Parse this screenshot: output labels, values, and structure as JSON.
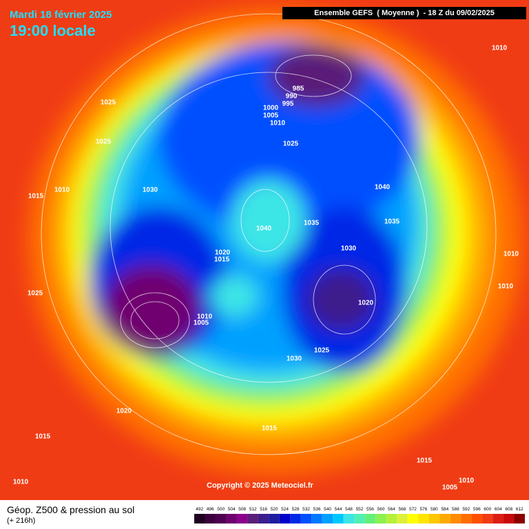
{
  "header": {
    "date": "Mardi 18 février 2025",
    "time": "19:00 locale",
    "run": "Ensemble GEFS  ( Moyenne )  - 18 Z du 09/02/2025"
  },
  "copyright": "Copyright © 2025 Meteociel.fr",
  "footer": {
    "title": "Géop. Z500 & pression au sol",
    "lead": "(+ 216h)"
  },
  "pressure_labels": [
    "1010",
    "1025",
    "1025",
    "1010",
    "1015",
    "1030",
    "985",
    "990",
    "995",
    "1000",
    "1005",
    "1010",
    "1025",
    "1040",
    "1040",
    "1035",
    "1035",
    "1030",
    "1020",
    "1015",
    "1010",
    "1010",
    "1020",
    "1025",
    "1010",
    "1005",
    "1025",
    "1030",
    "1020",
    "1015",
    "1015",
    "1015",
    "1010",
    "1010",
    "1005"
  ],
  "scale": {
    "labels": [
      "492",
      "496",
      "500",
      "504",
      "508",
      "512",
      "516",
      "520",
      "524",
      "528",
      "532",
      "536",
      "540",
      "544",
      "548",
      "552",
      "556",
      "560",
      "564",
      "568",
      "572",
      "576",
      "580",
      "584",
      "588",
      "592",
      "596",
      "600",
      "604",
      "608",
      "612"
    ],
    "colors": [
      "#1e0020",
      "#3c003c",
      "#500050",
      "#6e006e",
      "#8c008c",
      "#5a1e78",
      "#3c1e8c",
      "#1e1ea0",
      "#0000c8",
      "#0028e6",
      "#0050ff",
      "#0078ff",
      "#00a0ff",
      "#00c8ff",
      "#3ce6e6",
      "#50f0b4",
      "#64f078",
      "#8cf050",
      "#b4f03c",
      "#dcf03c",
      "#ffff00",
      "#ffe600",
      "#ffc800",
      "#ffaa00",
      "#ff8c00",
      "#ff6e00",
      "#ff5000",
      "#f03c14",
      "#dc1e14",
      "#c80a0a",
      "#8c0000"
    ]
  }
}
